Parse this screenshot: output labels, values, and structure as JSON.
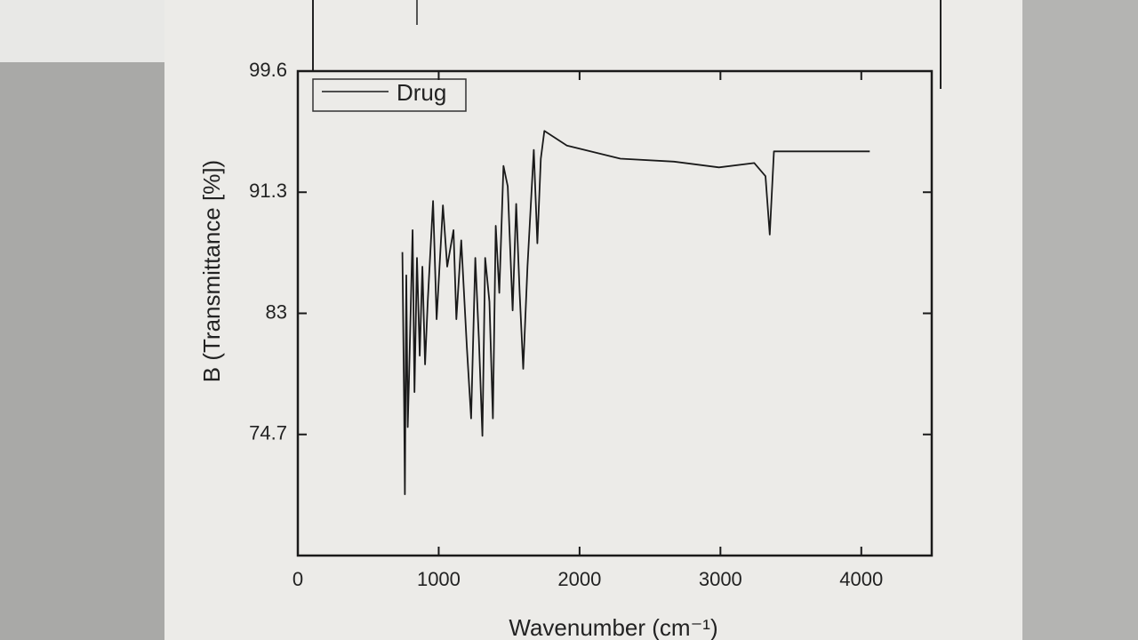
{
  "chart_data": {
    "type": "line",
    "xlabel": "Wavenumber (cm⁻¹)",
    "ylabel": "B (Transmittance [%])",
    "x": [
      742,
      755,
      760,
      770,
      780,
      790,
      815,
      828,
      846,
      865,
      884,
      903,
      922,
      960,
      985,
      1030,
      1060,
      1105,
      1125,
      1160,
      1200,
      1230,
      1260,
      1285,
      1310,
      1330,
      1360,
      1385,
      1405,
      1430,
      1460,
      1490,
      1525,
      1550,
      1575,
      1600,
      1630,
      1675,
      1700,
      1725,
      1750,
      1910,
      2290,
      2670,
      2990,
      3240,
      3320,
      3350,
      3380,
      4060
    ],
    "series": [
      {
        "name": "Drug",
        "color": "#1a1a1a",
        "values": [
          87.2,
          76.4,
          70.6,
          85.6,
          75.2,
          78.9,
          88.7,
          77.6,
          86.8,
          80.1,
          86.2,
          79.5,
          83.8,
          90.7,
          82.6,
          90.4,
          86.2,
          88.7,
          82.6,
          88.0,
          80.7,
          75.8,
          86.8,
          81.3,
          74.6,
          86.8,
          83.8,
          75.8,
          89.0,
          84.4,
          93.1,
          91.7,
          83.2,
          90.5,
          84.4,
          79.2,
          86.2,
          94.2,
          87.8,
          93.6,
          95.5,
          94.5,
          93.6,
          93.4,
          93.0,
          93.3,
          92.4,
          88.4,
          94.1,
          94.1
        ]
      }
    ],
    "xlim": [
      0,
      4500
    ],
    "xticks": [
      0,
      1000,
      2000,
      3000,
      4000
    ],
    "ylim": [
      66.4,
      99.6
    ],
    "yticks": [
      74.7,
      83.0,
      91.3,
      99.6
    ]
  }
}
